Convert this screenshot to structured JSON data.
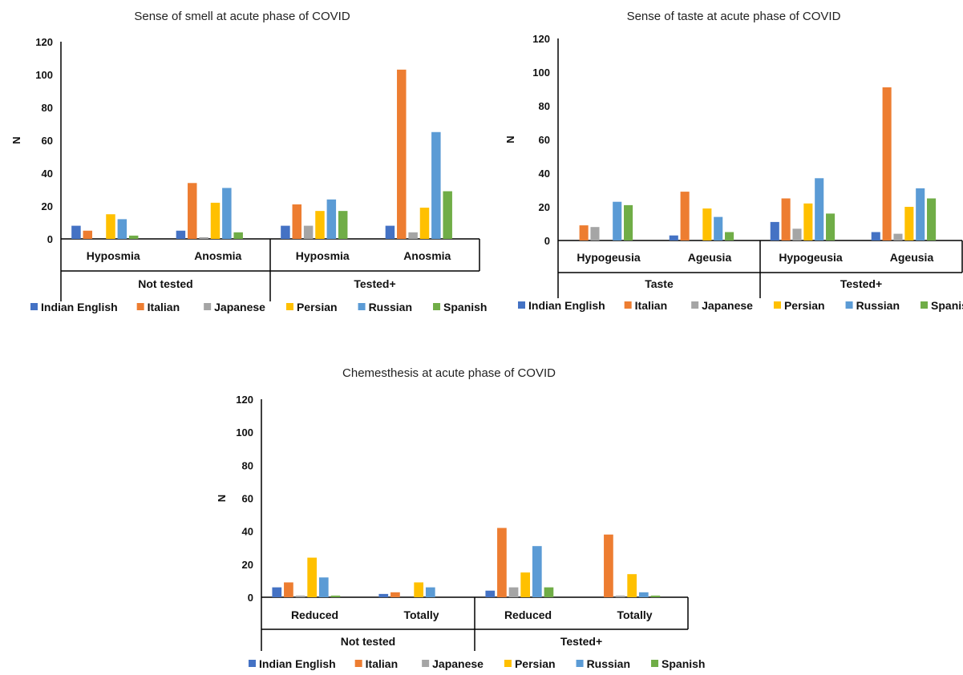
{
  "colors": {
    "Indian English": "#4472C4",
    "Italian": "#ED7D31",
    "Japanese": "#A5A5A5",
    "Persian": "#FFC000",
    "Russian": "#5B9BD5",
    "Spanish": "#70AD47"
  },
  "chart_data": [
    {
      "type": "bar",
      "title": "Sense of smell at acute phase of COVID",
      "ylabel": "N",
      "ylim": [
        0,
        120
      ],
      "yticks": [
        0,
        20,
        40,
        60,
        80,
        100,
        120
      ],
      "categories": [
        "Hyposmia",
        "Anosmia",
        "Hyposmia",
        "Anosmia"
      ],
      "groups": [
        {
          "label": "Not tested",
          "span": [
            0,
            1
          ]
        },
        {
          "label": "Tested+",
          "span": [
            2,
            3
          ]
        }
      ],
      "legend_position": "bottom",
      "series": [
        {
          "name": "Indian English",
          "values": [
            8,
            5,
            8,
            8
          ]
        },
        {
          "name": "Italian",
          "values": [
            5,
            34,
            21,
            103
          ]
        },
        {
          "name": "Japanese",
          "values": [
            0,
            1,
            8,
            4
          ]
        },
        {
          "name": "Persian",
          "values": [
            15,
            22,
            17,
            19
          ]
        },
        {
          "name": "Russian",
          "values": [
            12,
            31,
            24,
            65
          ]
        },
        {
          "name": "Spanish",
          "values": [
            2,
            4,
            17,
            29
          ]
        }
      ]
    },
    {
      "type": "bar",
      "title": "Sense of taste at acute phase of COVID",
      "ylabel": "N",
      "ylim": [
        0,
        120
      ],
      "yticks": [
        0,
        20,
        40,
        60,
        80,
        100,
        120
      ],
      "categories": [
        "Hypogeusia",
        "Ageusia",
        "Hypogeusia",
        "Ageusia"
      ],
      "groups": [
        {
          "label": "Taste",
          "span": [
            0,
            1
          ]
        },
        {
          "label": "Tested+",
          "span": [
            2,
            3
          ]
        }
      ],
      "legend_position": "bottom",
      "series": [
        {
          "name": "Indian English",
          "values": [
            0,
            3,
            11,
            5
          ]
        },
        {
          "name": "Italian",
          "values": [
            9,
            29,
            25,
            91
          ]
        },
        {
          "name": "Japanese",
          "values": [
            8,
            0,
            7,
            4
          ]
        },
        {
          "name": "Persian",
          "values": [
            0,
            19,
            22,
            20
          ]
        },
        {
          "name": "Russian",
          "values": [
            23,
            14,
            37,
            31
          ]
        },
        {
          "name": "Spanish",
          "values": [
            21,
            5,
            16,
            25
          ]
        }
      ]
    },
    {
      "type": "bar",
      "title": "Chemesthesis at acute phase of COVID",
      "ylabel": "N",
      "ylim": [
        0,
        120
      ],
      "yticks": [
        0,
        20,
        40,
        60,
        80,
        100,
        120
      ],
      "categories": [
        "Reduced",
        "Totally",
        "Reduced",
        "Totally"
      ],
      "groups": [
        {
          "label": "Not tested",
          "span": [
            0,
            1
          ]
        },
        {
          "label": "Tested+",
          "span": [
            2,
            3
          ]
        }
      ],
      "legend_position": "bottom",
      "series": [
        {
          "name": "Indian English",
          "values": [
            6,
            2,
            4,
            0
          ]
        },
        {
          "name": "Italian",
          "values": [
            9,
            3,
            42,
            38
          ]
        },
        {
          "name": "Japanese",
          "values": [
            1,
            0,
            6,
            1
          ]
        },
        {
          "name": "Persian",
          "values": [
            24,
            9,
            15,
            14
          ]
        },
        {
          "name": "Russian",
          "values": [
            12,
            6,
            31,
            3
          ]
        },
        {
          "name": "Spanish",
          "values": [
            1,
            0,
            6,
            1
          ]
        }
      ]
    }
  ]
}
